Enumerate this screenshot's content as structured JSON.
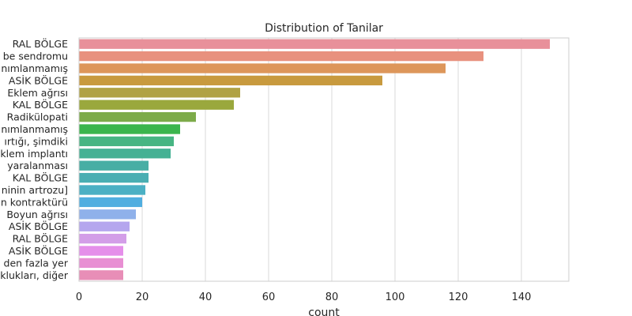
{
  "chart_data": {
    "type": "bar",
    "orientation": "horizontal",
    "title": "Distribution of Tanilar",
    "xlabel": "count",
    "ylabel": "",
    "xlim": [
      0,
      155
    ],
    "xticks": [
      0,
      20,
      40,
      60,
      80,
      100,
      120,
      140
    ],
    "grid": true,
    "legend": "none",
    "categories": [
      "RAL BÖLGE",
      "be sendromu",
      "nımlanmamış",
      "ASİK BÖLGE",
      "Eklem ağrısı",
      "KAL BÖLGE",
      "Radikülopati",
      "nımlanmamış",
      "ırtığı, şimdiki",
      "klem implantı",
      "yaralanması",
      "KAL BÖLGE",
      "ninin artrozu]",
      "n kontraktürü",
      "Boyun ağrısı",
      "ASİK BÖLGE",
      "RAL BÖLGE",
      "ASİK BÖLGE",
      "den fazla yer",
      "klukları, diğer"
    ],
    "values": [
      149,
      128,
      116,
      96,
      51,
      49,
      37,
      32,
      30,
      29,
      22,
      22,
      21,
      20,
      18,
      16,
      15,
      14,
      14,
      14
    ],
    "colors": [
      "#e8909a",
      "#e8917e",
      "#dd965a",
      "#c89a3e",
      "#b0a244",
      "#9aa83d",
      "#7dab4a",
      "#3bb54d",
      "#47b583",
      "#45b194",
      "#48aea4",
      "#4aaeb2",
      "#4bb0c4",
      "#50aee0",
      "#8fb1ea",
      "#b5a6ee",
      "#d39ee8",
      "#e58fea",
      "#e88fd3",
      "#e88eb7"
    ]
  }
}
